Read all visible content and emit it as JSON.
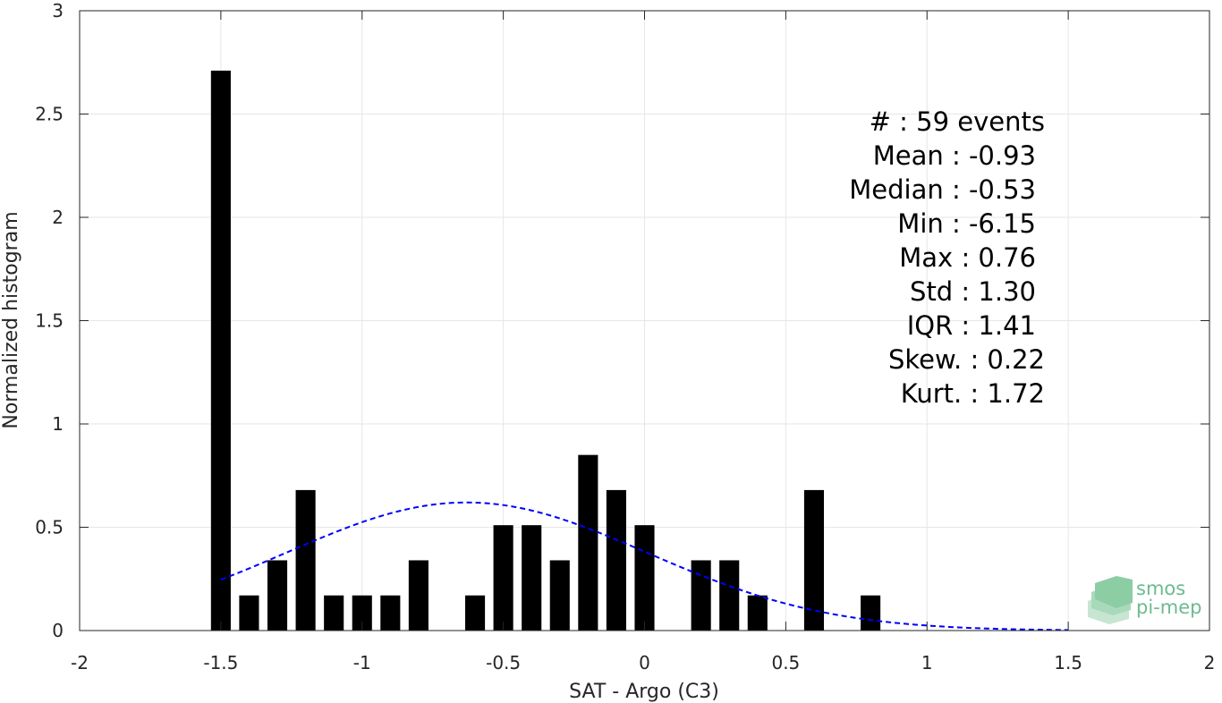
{
  "chart_data": {
    "type": "bar",
    "xlabel": "SAT - Argo (C3)",
    "ylabel": "Normalized histogram",
    "xlim": [
      -2,
      2
    ],
    "ylim": [
      0,
      3
    ],
    "xticks": [
      -2,
      -1.5,
      -1,
      -0.5,
      0,
      0.5,
      1,
      1.5,
      2
    ],
    "xtick_labels": [
      "-2",
      "-1.5",
      "-1",
      "-0.5",
      "0",
      "0.5",
      "1",
      "1.5",
      "2"
    ],
    "yticks": [
      0,
      0.5,
      1,
      1.5,
      2,
      2.5,
      3
    ],
    "ytick_labels": [
      "0",
      "0.5",
      "1",
      "1.5",
      "2",
      "2.5",
      "3"
    ],
    "grid": true,
    "bar_color": "#000000",
    "bar_width": 0.07,
    "bars": [
      {
        "x": -1.5,
        "y": 2.71
      },
      {
        "x": -1.4,
        "y": 0.17
      },
      {
        "x": -1.3,
        "y": 0.34
      },
      {
        "x": -1.2,
        "y": 0.68
      },
      {
        "x": -1.1,
        "y": 0.17
      },
      {
        "x": -1.0,
        "y": 0.17
      },
      {
        "x": -0.9,
        "y": 0.17
      },
      {
        "x": -0.8,
        "y": 0.34
      },
      {
        "x": -0.6,
        "y": 0.17
      },
      {
        "x": -0.5,
        "y": 0.51
      },
      {
        "x": -0.4,
        "y": 0.51
      },
      {
        "x": -0.3,
        "y": 0.34
      },
      {
        "x": -0.2,
        "y": 0.85
      },
      {
        "x": -0.1,
        "y": 0.68
      },
      {
        "x": 0.0,
        "y": 0.51
      },
      {
        "x": 0.2,
        "y": 0.34
      },
      {
        "x": 0.3,
        "y": 0.34
      },
      {
        "x": 0.4,
        "y": 0.17
      },
      {
        "x": 0.6,
        "y": 0.68
      },
      {
        "x": 0.8,
        "y": 0.17
      }
    ],
    "fit_curve": {
      "color": "#0000ff",
      "style": "dashed",
      "mean": -0.63,
      "sigma": 0.64,
      "peak": 0.62,
      "x_range": [
        -1.5,
        1.5
      ]
    },
    "stats_lines": [
      "#  : 59 events",
      "Mean : -0.93",
      "Median : -0.53",
      "Min : -6.15",
      "Max : 0.76",
      "Std : 1.30",
      "IQR : 1.41",
      "Skew. : 0.22",
      "Kurt. : 1.72"
    ]
  },
  "logo": {
    "line1": "smos",
    "line2": "pi-mep",
    "color": "#6dbb8f"
  }
}
